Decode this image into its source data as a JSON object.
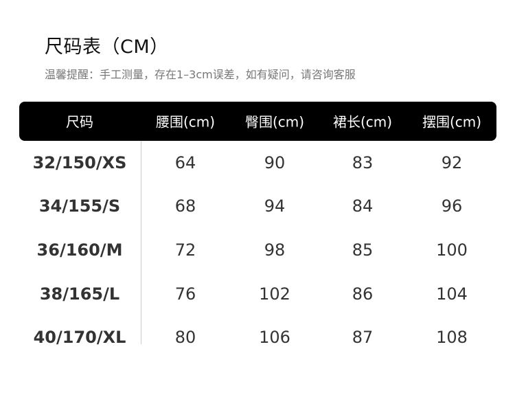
{
  "title": "尺码表（CM）",
  "subtitle": "温馨提醒：手工测量，存在1–3cm误差，如有疑问，请咨询客服",
  "table": {
    "headers": [
      "尺码",
      "腰围(cm)",
      "臀围(cm)",
      "裙长(cm)",
      "摆围(cm)"
    ],
    "rows": [
      [
        "32/150/XS",
        "64",
        "90",
        "83",
        "92"
      ],
      [
        "34/155/S",
        "68",
        "94",
        "84",
        "96"
      ],
      [
        "36/160/M",
        "72",
        "98",
        "85",
        "100"
      ],
      [
        "38/165/L",
        "76",
        "102",
        "86",
        "104"
      ],
      [
        "40/170/XL",
        "80",
        "106",
        "87",
        "108"
      ]
    ]
  },
  "colors": {
    "header_bg": "#000000",
    "header_text": "#ffffff",
    "body_text": "#333333"
  }
}
